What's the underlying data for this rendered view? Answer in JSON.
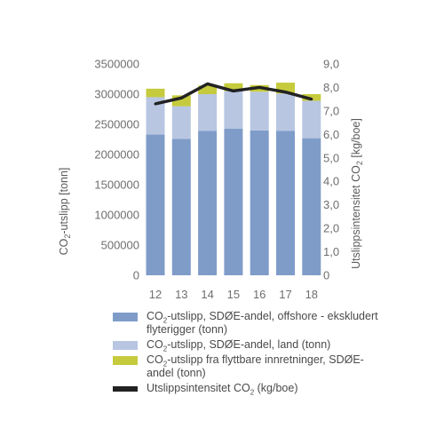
{
  "chart_data": {
    "type": "bar",
    "stacked": true,
    "categories": [
      "12",
      "13",
      "14",
      "15",
      "16",
      "17",
      "18"
    ],
    "ylim": [
      0,
      3500000
    ],
    "y_ticks": [
      "0",
      "500000",
      "1000000",
      "1500000",
      "2000000",
      "2500000",
      "3000000",
      "3500000"
    ],
    "y2lim": [
      0,
      9
    ],
    "y2_ticks": [
      "0",
      "1,0",
      "2,0",
      "3,0",
      "4,0",
      "5,0",
      "6,0",
      "7,0",
      "8,0",
      "9,0"
    ],
    "ylabel": {
      "pre": "CO",
      "sub": "2",
      "post": "-utslipp [tonn]"
    },
    "y2label": {
      "pre": "Utslippsintensitet CO",
      "sub": "2",
      "post": " [kg/boe]"
    },
    "grid": false,
    "legend_position": "bottom",
    "series": [
      {
        "legend": {
          "pre": "CO",
          "sub": "2",
          "post": "-utslipp, SDØE-andel, offshore - ekskludert flyterigger (tonn)"
        },
        "color": "#7f9cc9",
        "axis": "left",
        "values": [
          2330000,
          2260000,
          2390000,
          2430000,
          2400000,
          2390000,
          2270000
        ]
      },
      {
        "legend": {
          "pre": "CO",
          "sub": "2",
          "post": "-utslipp, SDØE-andel, land (tonn)"
        },
        "color": "#b8c6e2",
        "axis": "left",
        "values": [
          620000,
          540000,
          610000,
          620000,
          640000,
          620000,
          620000
        ]
      },
      {
        "legend": {
          "pre": "CO",
          "sub": "2",
          "post": "-utslipp fra flyttbare innretninger, SDØE-andel (tonn)"
        },
        "color": "#c5cb3c",
        "axis": "left",
        "values": [
          140000,
          180000,
          140000,
          130000,
          110000,
          180000,
          110000
        ]
      },
      {
        "legend": {
          "pre": "Utslippsintensitet CO",
          "sub": "2",
          "post": " (kg/boe)"
        },
        "color": "#222222",
        "axis": "right",
        "type": "line",
        "values": [
          7.3,
          7.55,
          8.15,
          7.85,
          8.0,
          7.8,
          7.5
        ]
      }
    ]
  }
}
